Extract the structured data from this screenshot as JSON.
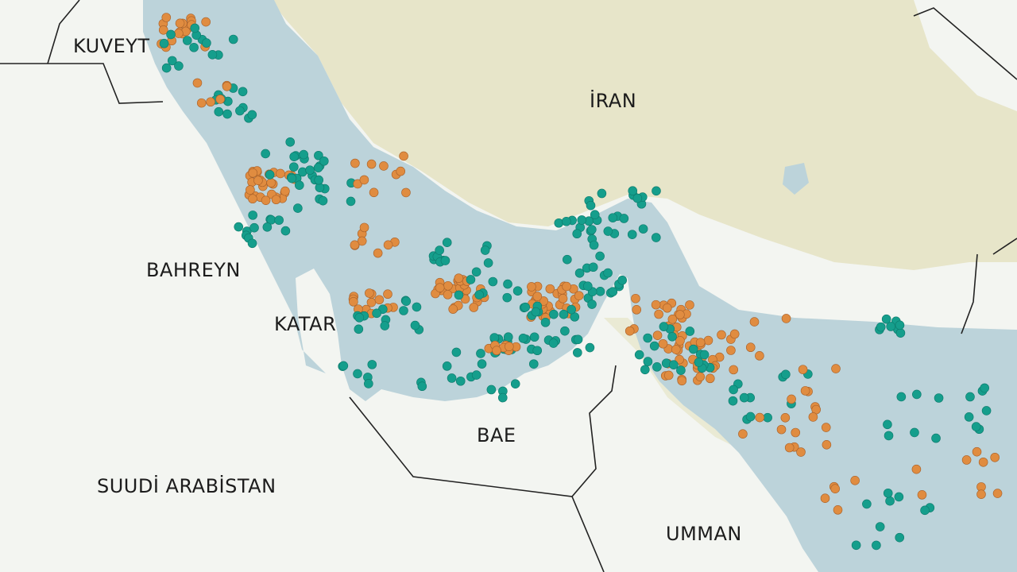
{
  "labels": {
    "kuwait": "KUVEYT",
    "iran": "İRAN",
    "bahrain": "BAHREYN",
    "qatar": "KATAR",
    "uae": "BAE",
    "saudi": "SUUDİ ARABİSTAN",
    "oman": "UMMAN"
  },
  "colors": {
    "water": "#bcd3da",
    "land": "#f3f5f1",
    "terrain": "#e4e2c2",
    "border": "#222222",
    "teal_points": "#159e8c",
    "orange_points": "#e08c40"
  },
  "legend_marks": [
    "teal-points",
    "orange-points"
  ]
}
